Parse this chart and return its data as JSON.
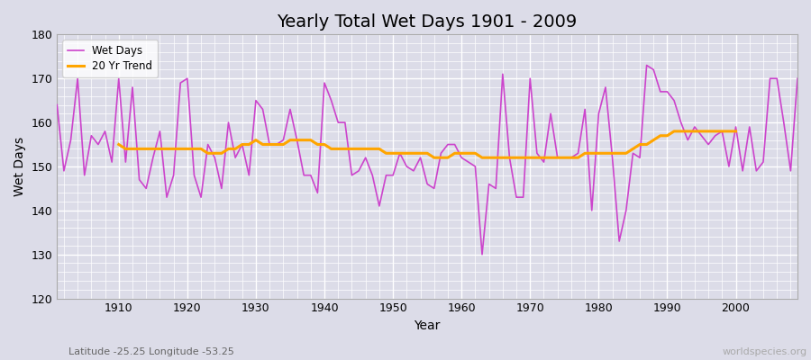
{
  "title": "Yearly Total Wet Days 1901 - 2009",
  "xlabel": "Year",
  "ylabel": "Wet Days",
  "subtitle": "Latitude -25.25 Longitude -53.25",
  "watermark": "worldspecies.org",
  "years": [
    1901,
    1902,
    1903,
    1904,
    1905,
    1906,
    1907,
    1908,
    1909,
    1910,
    1911,
    1912,
    1913,
    1914,
    1915,
    1916,
    1917,
    1918,
    1919,
    1920,
    1921,
    1922,
    1923,
    1924,
    1925,
    1926,
    1927,
    1928,
    1929,
    1930,
    1931,
    1932,
    1933,
    1934,
    1935,
    1936,
    1937,
    1938,
    1939,
    1940,
    1941,
    1942,
    1943,
    1944,
    1945,
    1946,
    1947,
    1948,
    1949,
    1950,
    1951,
    1952,
    1953,
    1954,
    1955,
    1956,
    1957,
    1958,
    1959,
    1960,
    1961,
    1962,
    1963,
    1964,
    1965,
    1966,
    1967,
    1968,
    1969,
    1970,
    1971,
    1972,
    1973,
    1974,
    1975,
    1976,
    1977,
    1978,
    1979,
    1980,
    1981,
    1982,
    1983,
    1984,
    1985,
    1986,
    1987,
    1988,
    1989,
    1990,
    1991,
    1992,
    1993,
    1994,
    1995,
    1996,
    1997,
    1998,
    1999,
    2000,
    2001,
    2002,
    2003,
    2004,
    2005,
    2006,
    2007,
    2008,
    2009
  ],
  "wet_days": [
    164,
    149,
    156,
    170,
    148,
    157,
    155,
    158,
    151,
    170,
    151,
    168,
    147,
    145,
    152,
    158,
    143,
    148,
    169,
    170,
    148,
    143,
    155,
    152,
    145,
    160,
    152,
    155,
    148,
    165,
    163,
    155,
    155,
    156,
    163,
    156,
    148,
    148,
    144,
    169,
    165,
    160,
    160,
    148,
    149,
    152,
    148,
    141,
    148,
    148,
    153,
    150,
    149,
    152,
    146,
    145,
    153,
    155,
    155,
    152,
    151,
    150,
    130,
    146,
    145,
    171,
    152,
    143,
    143,
    170,
    153,
    151,
    162,
    152,
    152,
    152,
    153,
    163,
    140,
    162,
    168,
    152,
    133,
    140,
    153,
    152,
    173,
    172,
    167,
    167,
    165,
    160,
    156,
    159,
    157,
    155,
    157,
    158,
    150,
    159,
    149,
    159,
    149,
    151,
    170,
    170,
    160,
    149,
    170
  ],
  "trend_years": [
    1910,
    1911,
    1912,
    1913,
    1914,
    1915,
    1916,
    1917,
    1918,
    1919,
    1920,
    1921,
    1922,
    1923,
    1924,
    1925,
    1926,
    1927,
    1928,
    1929,
    1930,
    1931,
    1932,
    1933,
    1934,
    1935,
    1936,
    1937,
    1938,
    1939,
    1940,
    1941,
    1942,
    1943,
    1944,
    1945,
    1946,
    1947,
    1948,
    1949,
    1950,
    1951,
    1952,
    1953,
    1954,
    1955,
    1956,
    1957,
    1958,
    1959,
    1960,
    1961,
    1962,
    1963,
    1964,
    1965,
    1966,
    1967,
    1968,
    1969,
    1970,
    1971,
    1972,
    1973,
    1974,
    1975,
    1976,
    1977,
    1978,
    1979,
    1980,
    1981,
    1982,
    1983,
    1984,
    1985,
    1986,
    1987,
    1988,
    1989,
    1990,
    1991,
    1992,
    1993,
    1994,
    1995,
    1996,
    1997,
    1998,
    1999,
    2000
  ],
  "trend_values": [
    155,
    154,
    154,
    154,
    154,
    154,
    154,
    154,
    154,
    154,
    154,
    154,
    154,
    153,
    153,
    153,
    154,
    154,
    155,
    155,
    156,
    155,
    155,
    155,
    155,
    156,
    156,
    156,
    156,
    155,
    155,
    154,
    154,
    154,
    154,
    154,
    154,
    154,
    154,
    153,
    153,
    153,
    153,
    153,
    153,
    153,
    152,
    152,
    152,
    153,
    153,
    153,
    153,
    152,
    152,
    152,
    152,
    152,
    152,
    152,
    152,
    152,
    152,
    152,
    152,
    152,
    152,
    152,
    153,
    153,
    153,
    153,
    153,
    153,
    153,
    154,
    155,
    155,
    156,
    157,
    157,
    158,
    158,
    158,
    158,
    158,
    158,
    158,
    158,
    158,
    158
  ],
  "wet_days_color": "#CC44CC",
  "trend_color": "#FFA500",
  "bg_color": "#DCDCE8",
  "ylim": [
    120,
    180
  ],
  "xlim": [
    1901,
    2009
  ],
  "yticks": [
    120,
    130,
    140,
    150,
    160,
    170,
    180
  ],
  "xticks": [
    1910,
    1920,
    1930,
    1940,
    1950,
    1960,
    1970,
    1980,
    1990,
    2000
  ],
  "title_fontsize": 14,
  "axis_fontsize": 10,
  "annotation_fontsize": 8
}
